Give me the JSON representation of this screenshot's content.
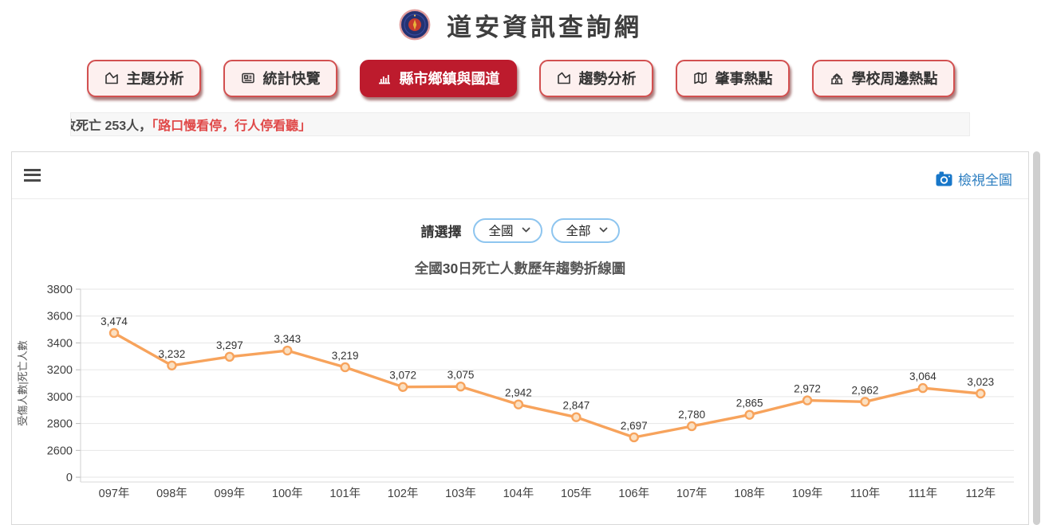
{
  "header": {
    "title": "道安資訊查詢網",
    "logo": "police-emblem"
  },
  "nav": {
    "buttons": [
      {
        "id": "theme-analysis",
        "label": "主題分析",
        "icon": "area-chart-icon",
        "active": false
      },
      {
        "id": "stats-overview",
        "label": "統計快覽",
        "icon": "stats-card-icon",
        "active": false
      },
      {
        "id": "county-township-highway",
        "label": "縣市鄉鎮與國道",
        "icon": "bar-chart-icon",
        "active": true
      },
      {
        "id": "trend-analysis",
        "label": "趨勢分析",
        "icon": "area-chart-icon",
        "active": false
      },
      {
        "id": "accident-hotspots",
        "label": "肇事熱點",
        "icon": "map-icon",
        "active": false
      },
      {
        "id": "school-hotspots",
        "label": "學校周邊熱點",
        "icon": "school-icon",
        "active": false
      }
    ]
  },
  "marquee": {
    "clipped_leading_char": "故",
    "text_dark": "死亡 253人，",
    "text_red": "「路口慢看停，行人停看聽」"
  },
  "panel": {
    "toolbar": {
      "menu_icon": "hamburger-icon",
      "camera_icon": "camera-icon",
      "view_full_label": "檢視全圖"
    },
    "filter": {
      "label": "請選擇",
      "region_selected": "全國",
      "category_selected": "全部"
    }
  },
  "chart_data": {
    "type": "line",
    "title": "全國30日死亡人數歷年趨勢折線圖",
    "title_parts": {
      "prefix": "全國",
      "bold": "30",
      "suffix": "日死亡人數歷年趨勢折線圖"
    },
    "ylabel": "受傷人數|死亡人數",
    "xlabel": "",
    "categories": [
      "097年",
      "098年",
      "099年",
      "100年",
      "101年",
      "102年",
      "103年",
      "104年",
      "105年",
      "106年",
      "107年",
      "108年",
      "109年",
      "110年",
      "111年",
      "112年"
    ],
    "values": [
      3474,
      3232,
      3297,
      3343,
      3219,
      3072,
      3075,
      2942,
      2847,
      2697,
      2780,
      2865,
      2972,
      2962,
      3064,
      3023
    ],
    "yticks": [
      3800,
      3600,
      3400,
      3200,
      3000,
      2800,
      2600,
      0
    ],
    "axis_break_between": [
      0,
      2600
    ],
    "grid": true,
    "legend": "none",
    "line_color": "#f7a35c",
    "marker_fill": "#fbe0c2",
    "data_label_color": "#333333"
  },
  "colors": {
    "accent_red": "#bd1b2d",
    "button_bg": "#fdf0ef",
    "button_border": "#d25050",
    "link_blue": "#2e7fc1",
    "select_border": "#8ec5ef",
    "marquee_red": "#e04848",
    "grid_line": "#e6e6e6"
  }
}
